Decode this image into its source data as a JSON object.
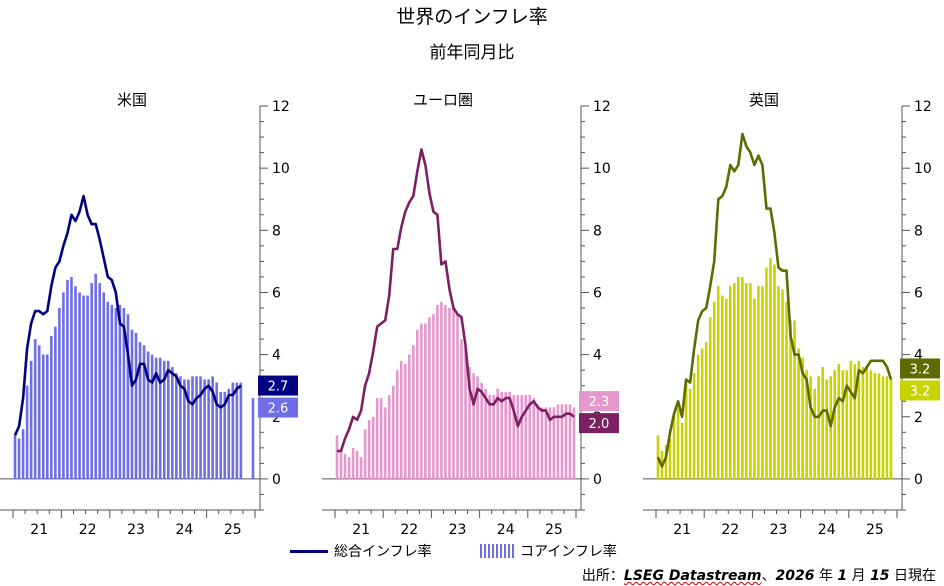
{
  "title": "世界のインフレ率",
  "subtitle": "前年同月比",
  "legend": {
    "headline": "総合インフレ率",
    "core": "コアインフレ率"
  },
  "source": {
    "prefix": "出所：",
    "name": "LSEG Datastream",
    "sep": "、",
    "year": "2026",
    "year_unit": "年",
    "month": "1",
    "month_unit": "月",
    "day": "15",
    "day_unit": "日現在"
  },
  "chart_data": [
    {
      "type": "bar",
      "title": "米国",
      "x_ticks": [
        "21",
        "22",
        "23",
        "24",
        "25"
      ],
      "ylim": [
        -1,
        12
      ],
      "y_ticks": [
        0,
        2,
        4,
        6,
        8,
        10,
        12
      ],
      "colors": {
        "headline": "#000080",
        "core": "#6e6ee8",
        "headline_box": "#000080",
        "core_box": "#6e6ee8"
      },
      "series": [
        {
          "name": "総合インフレ率",
          "type": "line",
          "values": [
            1.4,
            1.7,
            2.6,
            4.2,
            5.0,
            5.4,
            5.4,
            5.3,
            5.4,
            6.2,
            6.8,
            7.0,
            7.5,
            7.9,
            8.5,
            8.3,
            8.6,
            9.1,
            8.5,
            8.2,
            8.2,
            7.7,
            7.1,
            6.5,
            6.4,
            6.0,
            5.0,
            4.9,
            4.0,
            3.0,
            3.2,
            3.7,
            3.7,
            3.2,
            3.1,
            3.4,
            3.1,
            3.2,
            3.5,
            3.4,
            3.3,
            3.0,
            2.9,
            2.5,
            2.4,
            2.6,
            2.7,
            2.9,
            3.0,
            2.8,
            2.4,
            2.3,
            2.4,
            2.7,
            2.7,
            2.9,
            3.0,
            null,
            null,
            2.7
          ]
        },
        {
          "name": "コアインフレ率",
          "type": "bar",
          "values": [
            1.4,
            1.3,
            1.6,
            3.0,
            3.8,
            4.5,
            4.3,
            4.0,
            4.0,
            4.6,
            4.9,
            5.5,
            6.0,
            6.4,
            6.5,
            6.2,
            6.0,
            5.9,
            5.9,
            6.3,
            6.6,
            6.3,
            6.0,
            5.7,
            5.6,
            5.5,
            5.6,
            5.5,
            5.3,
            4.8,
            4.7,
            4.4,
            4.3,
            4.1,
            4.0,
            3.9,
            3.9,
            3.8,
            3.8,
            3.6,
            3.4,
            3.3,
            3.2,
            3.2,
            3.3,
            3.3,
            3.3,
            3.2,
            3.2,
            3.3,
            3.1,
            2.8,
            2.8,
            2.9,
            3.1,
            3.1,
            3.1,
            null,
            null,
            2.6
          ]
        }
      ],
      "latest": {
        "headline": "2.7",
        "core": "2.6"
      }
    },
    {
      "type": "bar",
      "title": "ユーロ圏",
      "x_ticks": [
        "21",
        "22",
        "23",
        "24",
        "25"
      ],
      "ylim": [
        -1,
        12
      ],
      "y_ticks": [
        0,
        2,
        4,
        6,
        8,
        10,
        12
      ],
      "colors": {
        "headline": "#7b2161",
        "core": "#e498cc",
        "headline_box": "#7b2161",
        "core_box": "#e498cc"
      },
      "series": [
        {
          "name": "総合インフレ率",
          "type": "line",
          "values": [
            0.9,
            0.9,
            1.3,
            1.6,
            2.0,
            1.9,
            2.2,
            3.0,
            3.4,
            4.1,
            4.9,
            5.0,
            5.1,
            5.9,
            7.4,
            7.4,
            8.1,
            8.6,
            8.9,
            9.1,
            9.9,
            10.6,
            10.1,
            9.2,
            8.6,
            8.5,
            6.9,
            7.0,
            6.1,
            5.5,
            5.3,
            5.2,
            4.3,
            2.9,
            2.4,
            2.9,
            2.8,
            2.6,
            2.4,
            2.4,
            2.6,
            2.5,
            2.6,
            2.6,
            2.2,
            1.7,
            2.0,
            2.2,
            2.4,
            2.5,
            2.3,
            2.2,
            2.2,
            1.9,
            2.0,
            2.0,
            2.0,
            2.1,
            2.1,
            2.0
          ]
        },
        {
          "name": "コアインフレ率",
          "type": "bar",
          "values": [
            1.4,
            0.9,
            0.8,
            0.7,
            1.0,
            0.9,
            0.7,
            1.6,
            1.9,
            2.0,
            2.6,
            2.6,
            2.3,
            2.7,
            3.0,
            3.5,
            3.8,
            3.7,
            4.0,
            4.3,
            4.8,
            5.0,
            5.0,
            5.2,
            5.3,
            5.6,
            5.7,
            5.6,
            5.5,
            5.5,
            5.3,
            4.5,
            4.2,
            3.6,
            3.4,
            3.3,
            3.1,
            2.9,
            2.7,
            2.7,
            2.9,
            2.8,
            2.8,
            2.8,
            2.7,
            2.7,
            2.7,
            2.7,
            2.7,
            2.6,
            2.4,
            2.3,
            2.3,
            2.3,
            2.3,
            2.4,
            2.4,
            2.4,
            2.4,
            2.3
          ]
        }
      ],
      "latest": {
        "headline": "2.0",
        "core": "2.3"
      }
    },
    {
      "type": "bar",
      "title": "英国",
      "x_ticks": [
        "21",
        "22",
        "23",
        "24",
        "25"
      ],
      "ylim": [
        -1,
        12
      ],
      "y_ticks": [
        0,
        2,
        4,
        6,
        8,
        10,
        12
      ],
      "colors": {
        "headline": "#5f6a00",
        "core": "#c8d400",
        "headline_box": "#5f6a00",
        "core_box": "#c8d400"
      },
      "series": [
        {
          "name": "総合インフレ率",
          "type": "line",
          "values": [
            0.7,
            0.4,
            0.7,
            1.5,
            2.1,
            2.5,
            2.0,
            3.2,
            3.1,
            4.2,
            5.1,
            5.4,
            5.5,
            6.2,
            7.0,
            9.0,
            9.1,
            9.4,
            10.1,
            9.9,
            10.1,
            11.1,
            10.7,
            10.5,
            10.1,
            10.4,
            10.1,
            8.7,
            8.7,
            7.9,
            6.8,
            6.7,
            6.7,
            4.6,
            4.0,
            4.0,
            3.4,
            3.2,
            2.3,
            2.0,
            2.0,
            2.2,
            2.2,
            1.7,
            2.3,
            2.6,
            2.5,
            3.0,
            2.8,
            2.6,
            3.5,
            3.4,
            3.6,
            3.8,
            3.8,
            3.8,
            3.8,
            3.6,
            3.2,
            null
          ]
        },
        {
          "name": "コアインフレ率",
          "type": "bar",
          "values": [
            1.4,
            0.9,
            1.1,
            1.3,
            2.0,
            2.3,
            1.8,
            3.1,
            2.9,
            3.4,
            4.0,
            4.2,
            4.4,
            5.2,
            5.7,
            6.2,
            5.9,
            5.8,
            6.2,
            6.3,
            6.5,
            6.5,
            6.3,
            6.3,
            5.8,
            6.2,
            6.2,
            6.8,
            7.1,
            6.9,
            6.2,
            6.1,
            5.7,
            5.1,
            5.1,
            4.2,
            3.9,
            3.5,
            3.3,
            2.9,
            3.3,
            3.6,
            3.2,
            3.3,
            3.5,
            3.7,
            3.5,
            3.5,
            3.8,
            3.7,
            3.8,
            3.6,
            3.6,
            3.5,
            3.4,
            3.4,
            3.3,
            3.3,
            3.2,
            null
          ]
        }
      ],
      "latest": {
        "headline": "3.2",
        "core": "3.2"
      }
    }
  ]
}
